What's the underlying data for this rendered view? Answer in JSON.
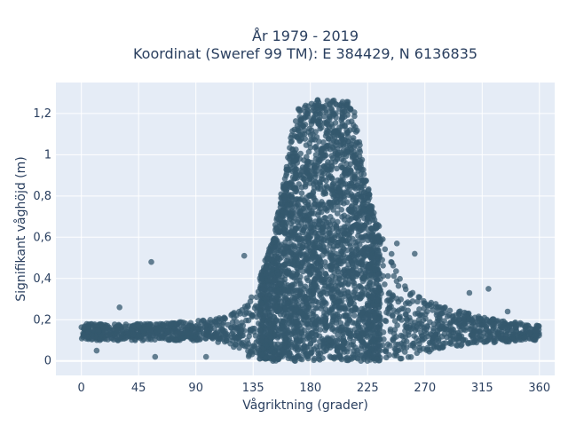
{
  "chart_data": {
    "type": "scatter",
    "title_line1": "År 1979 - 2019",
    "title_line2": "Koordinat (Sweref 99 TM): E 384429, N 6136835",
    "xlabel": "Vågriktning (grader)",
    "ylabel": "Signifikant våghöjd (m)",
    "xlim": [
      -20,
      372
    ],
    "ylim": [
      -0.07,
      1.35
    ],
    "x_ticks": [
      0,
      45,
      90,
      135,
      180,
      225,
      270,
      315,
      360
    ],
    "x_tick_labels": [
      "0",
      "45",
      "90",
      "135",
      "180",
      "225",
      "270",
      "315",
      "360"
    ],
    "y_ticks": [
      0,
      0.2,
      0.4,
      0.6,
      0.8,
      1.0,
      1.2
    ],
    "y_tick_labels": [
      "0",
      "0,2",
      "0,4",
      "0,6",
      "0,8",
      "1",
      "1,2"
    ],
    "grid": true,
    "marker_color": "#34586e",
    "plot_bg": "#e5ecf6",
    "envelope": {
      "x": [
        0,
        20,
        40,
        60,
        80,
        100,
        115,
        125,
        132,
        140,
        150,
        160,
        165,
        170,
        180,
        190,
        200,
        210,
        215,
        220,
        230,
        240,
        250,
        260,
        270,
        290,
        310,
        330,
        350,
        360
      ],
      "upper": [
        0.18,
        0.18,
        0.18,
        0.18,
        0.19,
        0.2,
        0.22,
        0.25,
        0.3,
        0.4,
        0.6,
        0.9,
        1.1,
        1.22,
        1.26,
        1.27,
        1.27,
        1.26,
        1.22,
        1.0,
        0.72,
        0.58,
        0.44,
        0.34,
        0.3,
        0.26,
        0.22,
        0.2,
        0.18,
        0.17
      ],
      "lower": [
        0.1,
        0.1,
        0.1,
        0.1,
        0.1,
        0.1,
        0.08,
        0.05,
        0.02,
        0.0,
        0.0,
        0.0,
        0.0,
        0.0,
        0.0,
        0.0,
        0.0,
        0.0,
        0.0,
        0.0,
        0.0,
        0.0,
        0.0,
        0.02,
        0.04,
        0.07,
        0.08,
        0.09,
        0.1,
        0.1
      ]
    },
    "outliers": [
      {
        "x": 55,
        "y": 0.48
      },
      {
        "x": 30,
        "y": 0.26
      },
      {
        "x": 58,
        "y": 0.02
      },
      {
        "x": 320,
        "y": 0.35
      },
      {
        "x": 305,
        "y": 0.33
      },
      {
        "x": 98,
        "y": 0.02
      },
      {
        "x": 12,
        "y": 0.05
      },
      {
        "x": 335,
        "y": 0.24
      },
      {
        "x": 128,
        "y": 0.51
      },
      {
        "x": 248,
        "y": 0.57
      },
      {
        "x": 262,
        "y": 0.52
      }
    ]
  }
}
